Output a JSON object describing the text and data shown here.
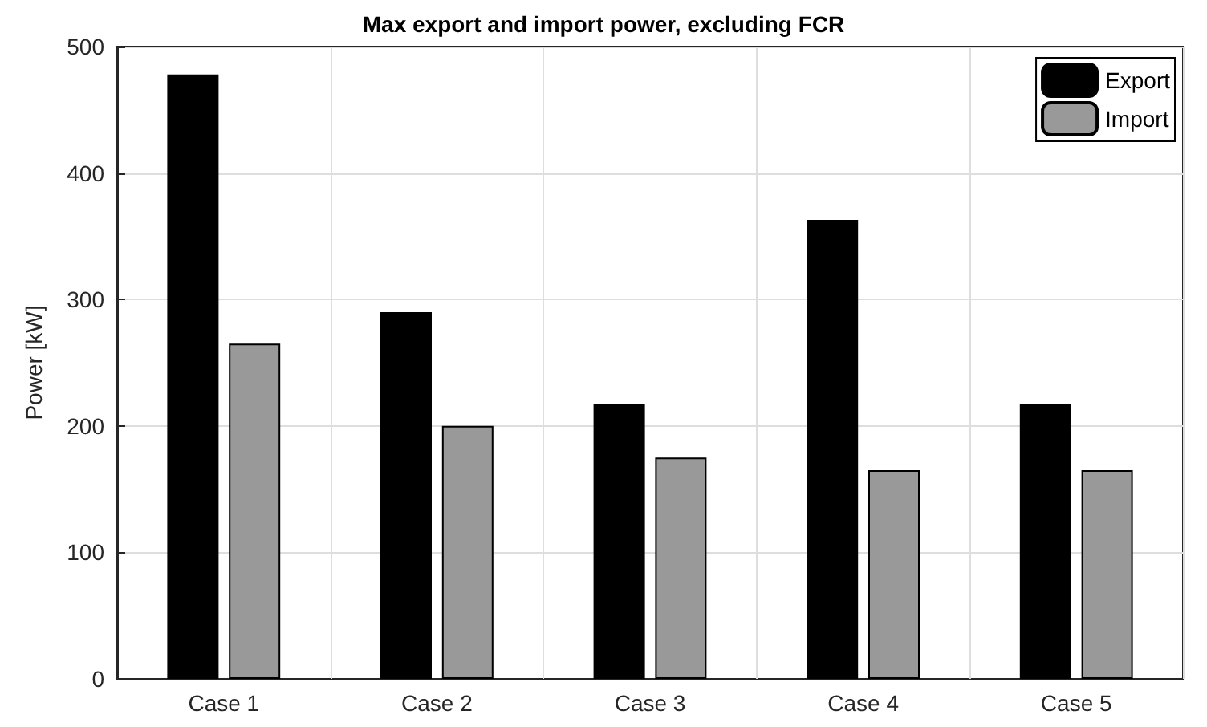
{
  "chart_data": {
    "type": "bar",
    "title": "Max export and import power, excluding FCR",
    "ylabel": "Power [kW]",
    "categories": [
      "Case 1",
      "Case 2",
      "Case 3",
      "Case 4",
      "Case 5"
    ],
    "series": [
      {
        "name": "Export",
        "color": "#000000",
        "values": [
          478,
          290,
          217,
          363,
          217
        ]
      },
      {
        "name": "Import",
        "color": "#999999",
        "values": [
          265,
          200,
          175,
          165,
          165
        ]
      }
    ],
    "ylim": [
      0,
      500
    ],
    "yticks": [
      0,
      100,
      200,
      300,
      400,
      500
    ],
    "grid": true,
    "legend": "top right"
  }
}
